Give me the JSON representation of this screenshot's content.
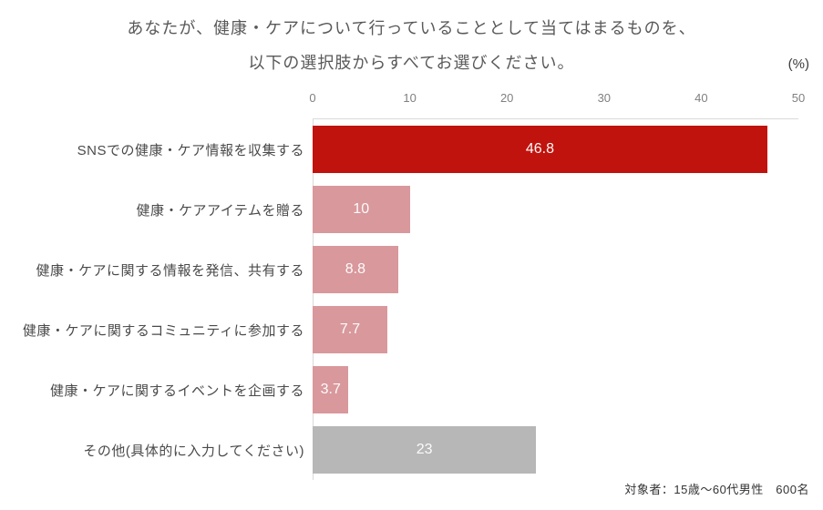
{
  "title": {
    "line1": "あなたが、健康・ケアについて行っていることとして当てはまるものを、",
    "line2": "以下の選択肢からすべてお選びください。"
  },
  "unit_label": "(%)",
  "footnote": "対象者：15歳〜60代男性　600名",
  "colors": {
    "highlight_bar": "#c1130d",
    "normal_bar": "#d9989c",
    "other_bar": "#b7b7b7",
    "axis_line": "#d9d9d9",
    "tick_text": "#808080",
    "title_text": "#595959",
    "category_text": "#4a4a4a",
    "value_text": "#fbfbfb",
    "footnote_text": "#333333"
  },
  "chart_data": {
    "type": "bar",
    "orientation": "horizontal",
    "title": "あなたが、健康・ケアについて行っていることとして当てはまるものを、以下の選択肢からすべてお選びください。",
    "xlabel": "(%)",
    "ylabel": "",
    "xlim": [
      0,
      50
    ],
    "xticks": [
      0,
      10,
      20,
      30,
      40,
      50
    ],
    "grid": false,
    "legend": false,
    "categories": [
      "SNSでの健康・ケア情報を収集する",
      "健康・ケアアイテムを贈る",
      "健康・ケアに関する情報を発信、共有する",
      "健康・ケアに関するコミュニティに参加する",
      "健康・ケアに関するイベントを企画する",
      "その他(具体的に入力してください)"
    ],
    "values": [
      46.8,
      10,
      8.8,
      7.7,
      3.7,
      23
    ],
    "value_labels": [
      "46.8",
      "10",
      "8.8",
      "7.7",
      "3.7",
      "23"
    ],
    "bar_colors": [
      "#c1130d",
      "#d9989c",
      "#d9989c",
      "#d9989c",
      "#d9989c",
      "#b7b7b7"
    ],
    "annotation": "対象者：15歳〜60代男性　600名"
  }
}
